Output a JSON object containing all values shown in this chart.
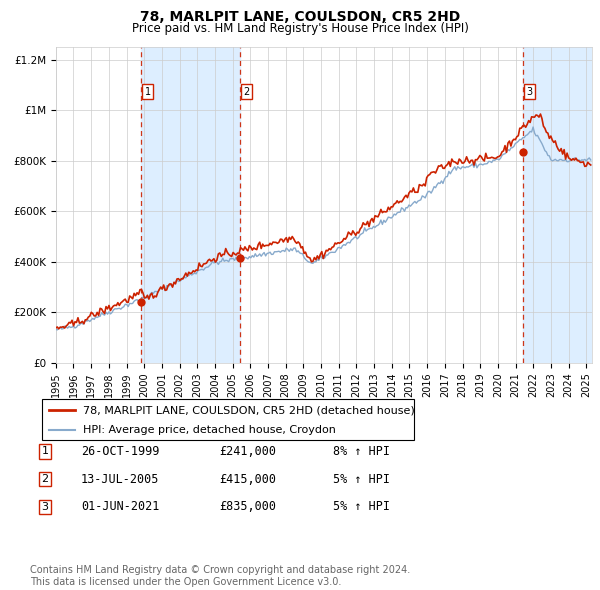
{
  "title": "78, MARLPIT LANE, COULSDON, CR5 2HD",
  "subtitle": "Price paid vs. HM Land Registry's House Price Index (HPI)",
  "ylim": [
    0,
    1250000
  ],
  "xlim_start": 1995.0,
  "xlim_end": 2025.3,
  "yticks": [
    0,
    200000,
    400000,
    600000,
    800000,
    1000000,
    1200000
  ],
  "ytick_labels": [
    "£0",
    "£200K",
    "£400K",
    "£600K",
    "£800K",
    "£1M",
    "£1.2M"
  ],
  "purchase_dates": [
    1999.82,
    2005.42,
    2021.42
  ],
  "purchase_prices": [
    241000,
    415000,
    835000
  ],
  "purchase_labels": [
    "1",
    "2",
    "3"
  ],
  "legend_line1": "78, MARLPIT LANE, COULSDON, CR5 2HD (detached house)",
  "legend_line2": "HPI: Average price, detached house, Croydon",
  "table_rows": [
    [
      "1",
      "26-OCT-1999",
      "£241,000",
      "8% ↑ HPI"
    ],
    [
      "2",
      "13-JUL-2005",
      "£415,000",
      "5% ↑ HPI"
    ],
    [
      "3",
      "01-JUN-2021",
      "£835,000",
      "5% ↑ HPI"
    ]
  ],
  "footer": "Contains HM Land Registry data © Crown copyright and database right 2024.\nThis data is licensed under the Open Government Licence v3.0.",
  "hpi_color": "#88aacc",
  "price_color": "#cc2200",
  "bg_shade_color": "#ddeeff",
  "grid_color": "#cccccc",
  "title_fontsize": 10,
  "subtitle_fontsize": 8.5,
  "tick_fontsize": 7.5,
  "legend_fontsize": 8,
  "table_fontsize": 8.5,
  "footer_fontsize": 7
}
